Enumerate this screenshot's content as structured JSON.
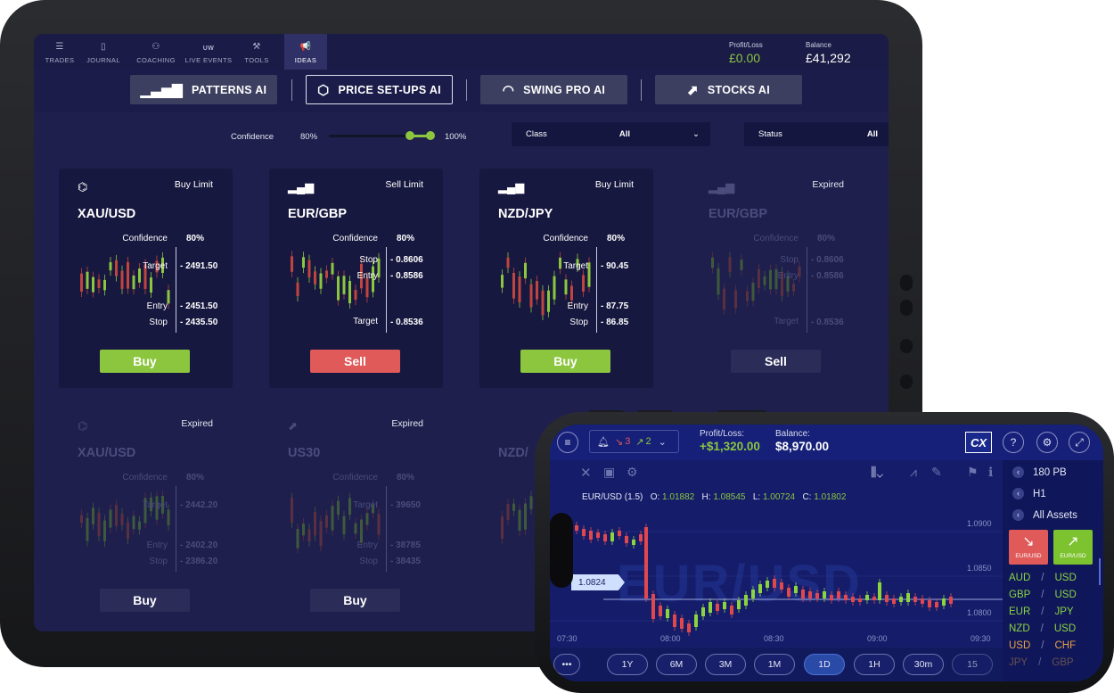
{
  "tablet": {
    "nav": [
      {
        "label": "TRADES",
        "icon": "list-icon"
      },
      {
        "label": "JOURNAL",
        "icon": "book-icon"
      },
      {
        "label": "COACHING",
        "icon": "people-icon"
      },
      {
        "label": "LIVE EVENTS",
        "icon": "uw-icon",
        "icon_text": "UW"
      },
      {
        "label": "TOOLS",
        "icon": "tools-icon"
      },
      {
        "label": "IDEAS",
        "icon": "megaphone-icon"
      }
    ],
    "profit_loss": {
      "label": "Profit/Loss",
      "value": "£0.00"
    },
    "balance": {
      "label": "Balance",
      "value": "£41,292"
    },
    "ai_tabs": [
      {
        "label": "PATTERNS AI",
        "icon": "bars-icon"
      },
      {
        "label": "PRICE SET-UPS AI",
        "icon": "arrow-hexagon-icon"
      },
      {
        "label": "SWING PRO AI",
        "icon": "gauge-icon"
      },
      {
        "label": "STOCKS AI",
        "icon": "trend-chart-icon"
      }
    ],
    "filters": {
      "confidence_label": "Confidence",
      "confidence_min": "80%",
      "confidence_max": "100%",
      "class_label": "Class",
      "class_value": "All",
      "status_label": "Status",
      "status_value": "All"
    },
    "cards": [
      {
        "type": "Buy Limit",
        "pair": "XAU/USD",
        "confidence_label": "Confidence",
        "confidence": "80%",
        "levels": [
          {
            "label": "Target",
            "value": "2491.50"
          },
          {
            "label": "Entry",
            "value": "2451.50"
          },
          {
            "label": "Stop",
            "value": "2435.50"
          }
        ],
        "button": "Buy",
        "dim": false
      },
      {
        "type": "Sell Limit",
        "pair": "EUR/GBP",
        "confidence_label": "Confidence",
        "confidence": "80%",
        "levels": [
          {
            "label": "Stop",
            "value": "0.8606"
          },
          {
            "label": "Entry",
            "value": "0.8586"
          },
          {
            "label": "Target",
            "value": "0.8536"
          }
        ],
        "button": "Sell",
        "dim": false
      },
      {
        "type": "Buy Limit",
        "pair": "NZD/JPY",
        "confidence_label": "Confidence",
        "confidence": "80%",
        "levels": [
          {
            "label": "Target",
            "value": "90.45"
          },
          {
            "label": "Entry",
            "value": "87.75"
          },
          {
            "label": "Stop",
            "value": "86.85"
          }
        ],
        "button": "Buy",
        "dim": false
      },
      {
        "type": "Expired",
        "pair": "EUR/GBP",
        "confidence_label": "Confidence",
        "confidence": "80%",
        "levels": [
          {
            "label": "Stop",
            "value": "0.8606"
          },
          {
            "label": "Entry",
            "value": "0.8586"
          },
          {
            "label": "Target",
            "value": "0.8536"
          }
        ],
        "button": "Sell",
        "dim": true
      },
      {
        "type": "Expired",
        "pair": "XAU/USD",
        "confidence_label": "Confidence",
        "confidence": "80%",
        "levels": [
          {
            "label": "Target",
            "value": "2442.20"
          },
          {
            "label": "Entry",
            "value": "2402.20"
          },
          {
            "label": "Stop",
            "value": "2386.20"
          }
        ],
        "button": "Buy",
        "dim": true
      },
      {
        "type": "Expired",
        "pair": "US30",
        "confidence_label": "Confidence",
        "confidence": "80%",
        "levels": [
          {
            "label": "Target",
            "value": "39650"
          },
          {
            "label": "Entry",
            "value": "38785"
          },
          {
            "label": "Stop",
            "value": "38435"
          }
        ],
        "button": "Buy",
        "dim": true
      },
      {
        "type": "",
        "pair": "NZD/",
        "dim": true
      }
    ]
  },
  "phone": {
    "alerts_down": "3",
    "alerts_up": "2",
    "profit_loss_label": "Profit/Loss:",
    "profit_loss_value": "+$1,320.00",
    "balance_label": "Balance:",
    "balance_value": "$8,970.00",
    "logo": "CX",
    "ohlc": {
      "symbol": "EUR/USD (1.5)",
      "o_label": "O:",
      "o": "1.01882",
      "h_label": "H:",
      "h": "1.08545",
      "l_label": "L:",
      "l": "1.00724",
      "c_label": "C:",
      "c": "1.01802"
    },
    "watermark": "EUR/USD",
    "price_tag": "1.0824",
    "y_ticks": [
      "1.0900",
      "1.0850",
      "1.0800"
    ],
    "x_ticks": [
      "07:30",
      "08:00",
      "08:30",
      "09:00",
      "09:30"
    ],
    "timeframes": [
      "1Y",
      "6M",
      "3M",
      "1M",
      "1D",
      "1H",
      "30m",
      "15"
    ],
    "active_timeframe": "1D",
    "side": {
      "items": [
        "180 PB",
        "H1",
        "All Assets"
      ],
      "sell_label": "EUR/USD",
      "buy_label": "EUR/USD"
    },
    "assets": [
      [
        "AUD",
        "USD"
      ],
      [
        "GBP",
        "USD"
      ],
      [
        "EUR",
        "JPY"
      ],
      [
        "NZD",
        "USD"
      ],
      [
        "USD",
        "CHF"
      ],
      [
        "JPY",
        "GBP"
      ]
    ]
  },
  "colors": {
    "green": "#8cc63f",
    "red": "#e05a5a",
    "panel": "#17183f",
    "bg": "#1e1f4d",
    "phone_bg": "#12195b"
  }
}
